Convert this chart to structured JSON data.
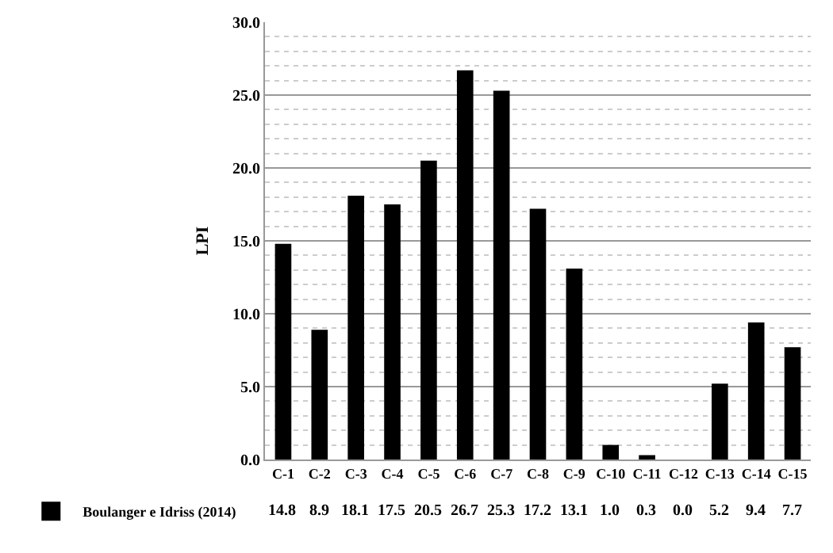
{
  "chart_data": {
    "type": "bar",
    "ylabel": "LPI",
    "categories": [
      "C-1",
      "C-2",
      "C-3",
      "C-4",
      "C-5",
      "C-6",
      "C-7",
      "C-8",
      "C-9",
      "C-10",
      "C-11",
      "C-12",
      "C-13",
      "C-14",
      "C-15"
    ],
    "series": [
      {
        "name": "Boulanger e Idriss (2014)",
        "color": "#000000",
        "values": [
          14.8,
          8.9,
          18.1,
          17.5,
          20.5,
          26.7,
          25.3,
          17.2,
          13.1,
          1.0,
          0.3,
          0.0,
          5.2,
          9.4,
          7.7
        ],
        "value_labels": [
          "14.8",
          "8.9",
          "18.1",
          "17.5",
          "20.5",
          "26.7",
          "25.3",
          "17.2",
          "13.1",
          "1.0",
          "0.3",
          "0.0",
          "5.2",
          "9.4",
          "7.7"
        ]
      }
    ],
    "ylim": [
      0,
      30
    ],
    "yticks": [
      {
        "value": 0,
        "label": "0.0"
      },
      {
        "value": 5,
        "label": "5.0"
      },
      {
        "value": 10,
        "label": "10.0"
      },
      {
        "value": 15,
        "label": "15.0"
      },
      {
        "value": 20,
        "label": "20.0"
      },
      {
        "value": 25,
        "label": "25.0"
      },
      {
        "value": 30,
        "label": "30.0"
      }
    ],
    "grid": "y",
    "legend": "bottom",
    "data_labels": true
  }
}
